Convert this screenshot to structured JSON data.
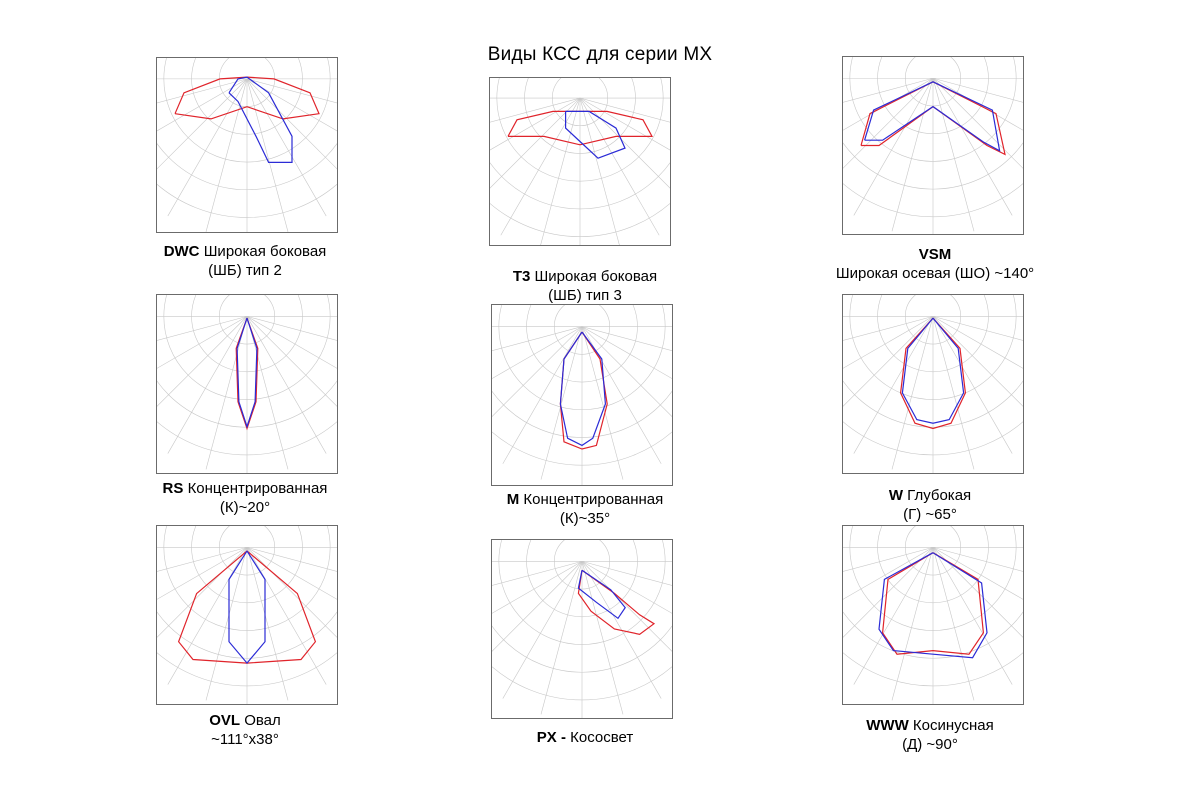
{
  "title": "Виды КСС для серии МХ",
  "colors": {
    "red": "#e0242b",
    "blue": "#2b2bd6",
    "grid": "#c8c8c8",
    "frame": "#6b6b6b"
  },
  "charts": [
    {
      "id": "dwc",
      "code": "DWC",
      "line1": "Широкая боковая",
      "line2": "(ШБ) тип 2"
    },
    {
      "id": "t3",
      "code": "T3",
      "line1": "Широкая боковая",
      "line2": "(ШБ) тип 3"
    },
    {
      "id": "vsm",
      "code": "VSM",
      "line1": "",
      "line2": "Широкая осевая (ШО) ~140°"
    },
    {
      "id": "rs",
      "code": "RS",
      "line1": "Концентрированная",
      "line2": "(К)~20°"
    },
    {
      "id": "m",
      "code": "M",
      "line1": "Концентрированная",
      "line2": "(К)~35°"
    },
    {
      "id": "w",
      "code": "W",
      "line1": " Глубокая",
      "line2": "(Г) ~65°"
    },
    {
      "id": "ovl",
      "code": "OVL",
      "line1": "Овал",
      "line2": "~111°x38°"
    },
    {
      "id": "px",
      "code": "PX -",
      "line1": "Кососвет",
      "line2": ""
    },
    {
      "id": "www",
      "code": "WWW",
      "line1": "Косинусная",
      "line2": "(Д) ~90°"
    }
  ]
}
